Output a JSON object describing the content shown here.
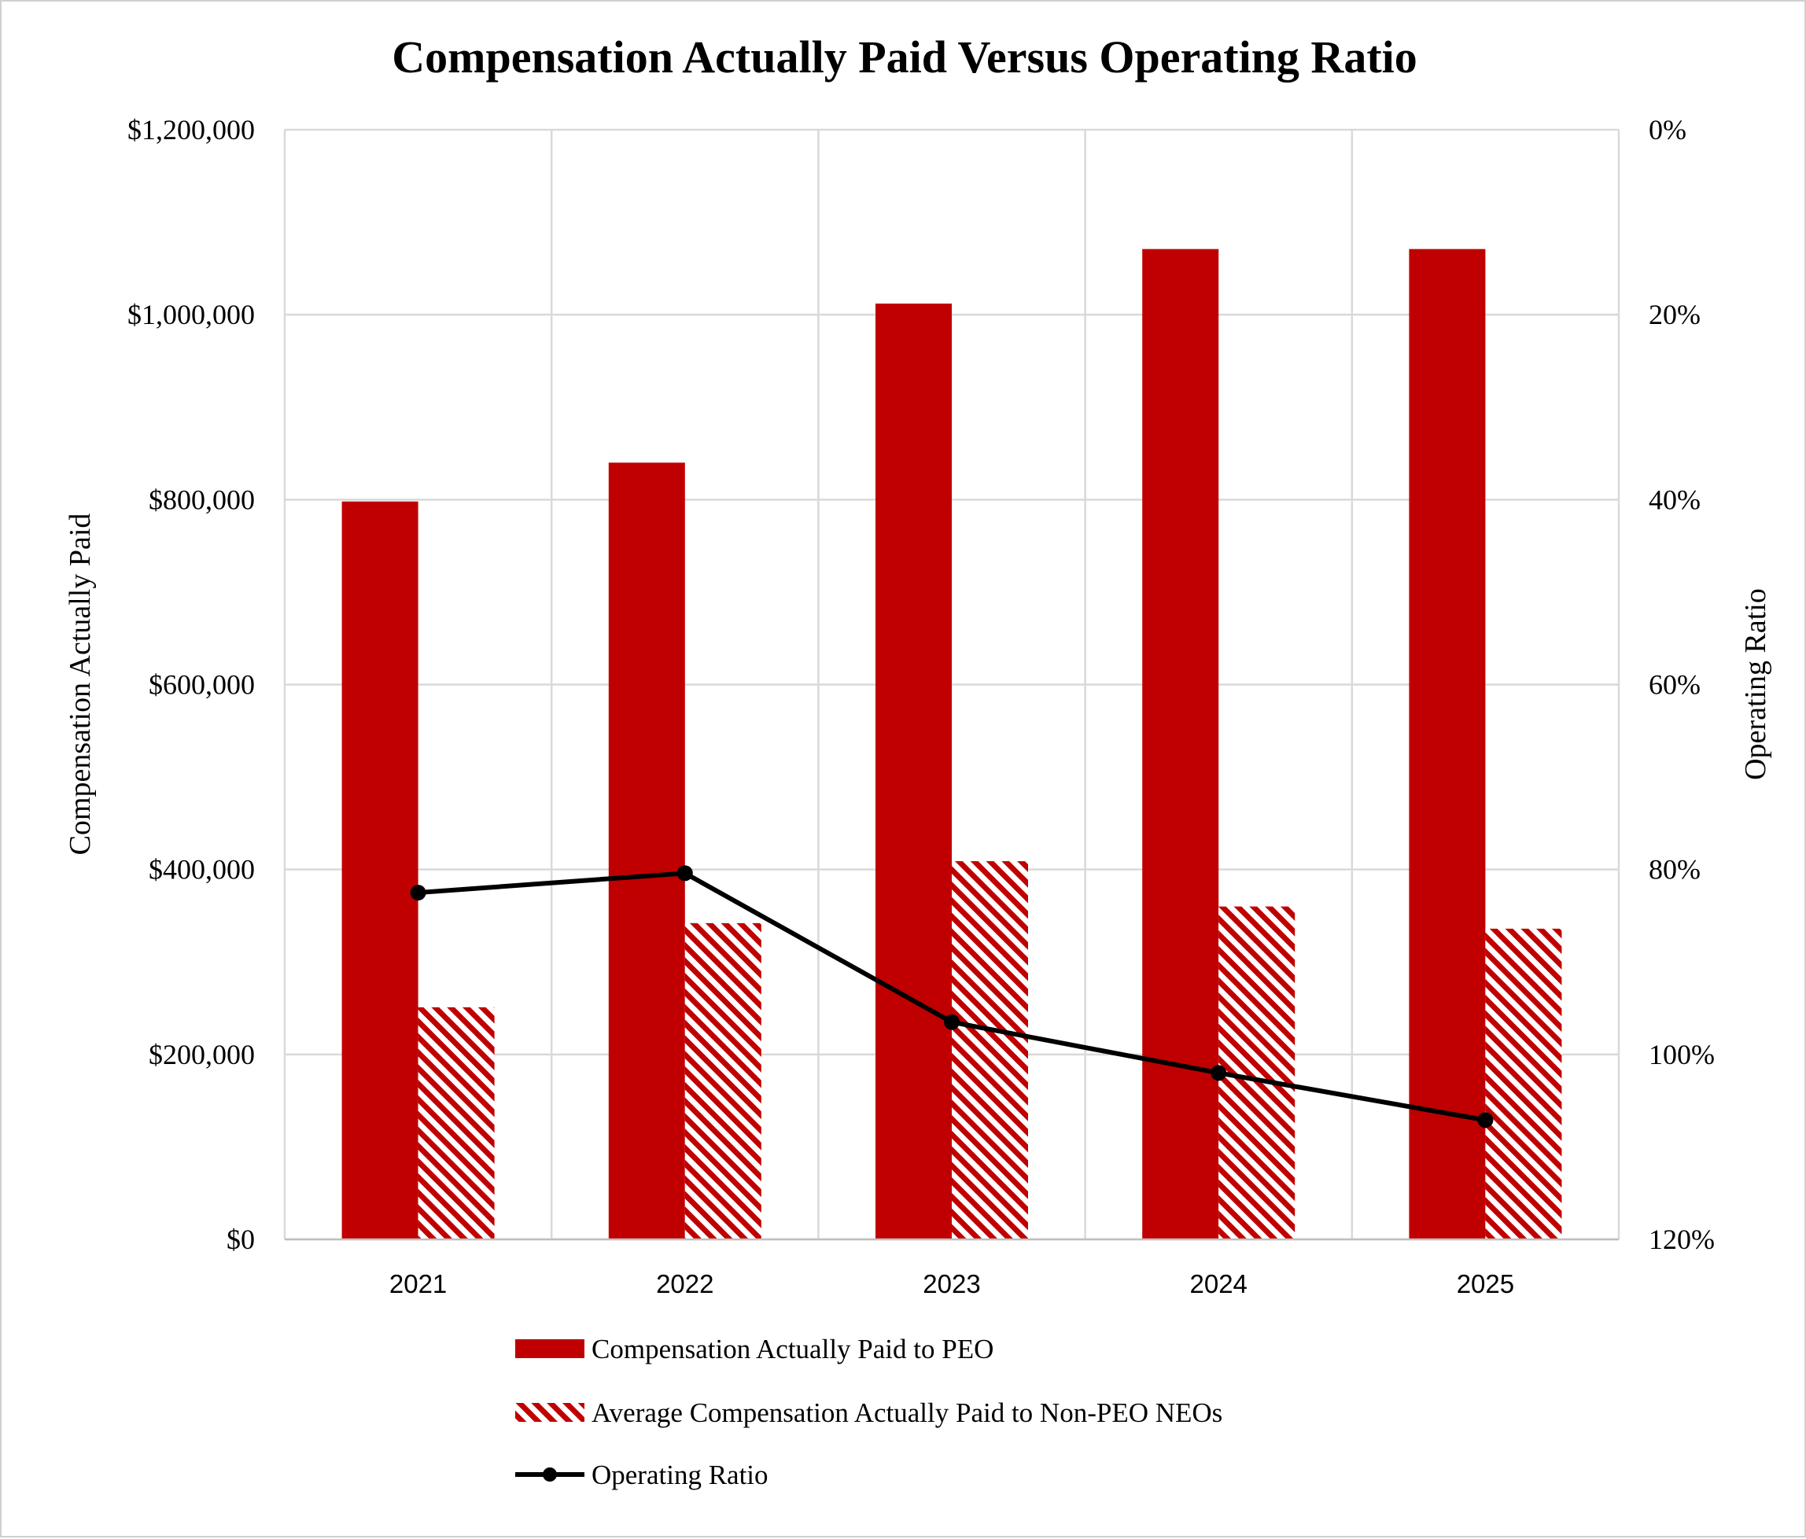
{
  "chart_data": {
    "type": "bar",
    "title": "Compensation Actually Paid Versus Operating Ratio",
    "categories": [
      "2021",
      "2022",
      "2023",
      "2024",
      "2025"
    ],
    "ylabel": "Compensation Actually Paid",
    "y2label": "Operating Ratio",
    "ylim": [
      0,
      1200000
    ],
    "y2lim": [
      0,
      120
    ],
    "y2_inverted": true,
    "yticks": [
      "$0",
      "$200,000",
      "$400,000",
      "$600,000",
      "$800,000",
      "$1,000,000",
      "$1,200,000"
    ],
    "y2ticks": [
      "0%",
      "20%",
      "40%",
      "60%",
      "80%",
      "100%",
      "120%"
    ],
    "grid": true,
    "legend_position": "bottom",
    "series": [
      {
        "name": "Compensation Actually Paid to PEO",
        "type": "bar",
        "color": "#C00000",
        "fill": "solid",
        "values": [
          798000,
          840000,
          1012000,
          1071000,
          1071000
        ]
      },
      {
        "name": "Average Compensation Actually Paid to Non-PEO NEOs",
        "type": "bar",
        "color": "#C00000",
        "fill": "diagonal-hatch",
        "values": [
          251000,
          342000,
          409000,
          360000,
          336000
        ]
      },
      {
        "name": "Operating Ratio",
        "type": "line",
        "axis": "right",
        "color": "#000000",
        "marker": "circle",
        "values": [
          82.5,
          80.4,
          96.5,
          102.0,
          107.1
        ]
      }
    ]
  }
}
